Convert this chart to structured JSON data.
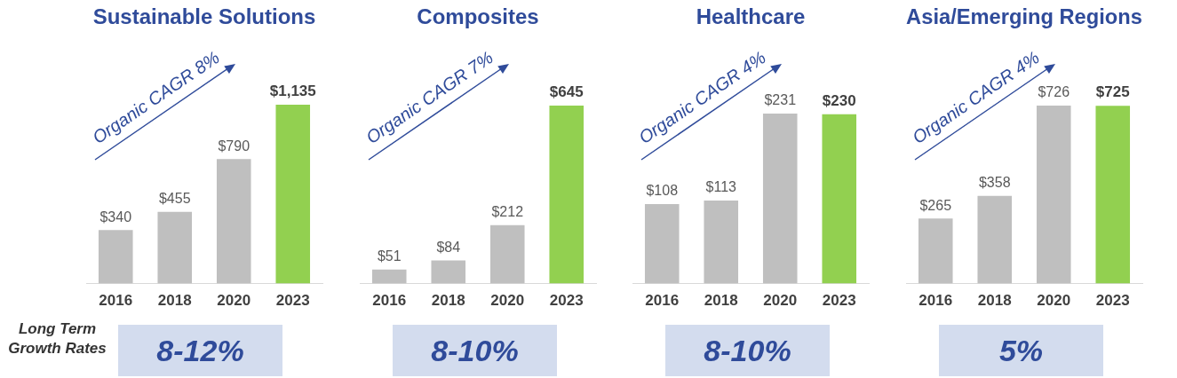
{
  "chart_data": [
    {
      "type": "bar",
      "title": "Sustainable Solutions",
      "categories": [
        "2016",
        "2018",
        "2020",
        "2023"
      ],
      "values": [
        340,
        455,
        790,
        1135
      ],
      "colors": [
        "#bfbfbf",
        "#bfbfbf",
        "#bfbfbf",
        "#92d050"
      ],
      "value_labels": [
        "$340",
        "$455",
        "$790",
        "$1,135"
      ],
      "tick_labels": "x",
      "grid": false,
      "legend": false,
      "annotations": [
        "Organic CAGR 8%",
        "8-12%",
        "Long Term Growth Rates"
      ]
    },
    {
      "type": "bar",
      "title": "Composites",
      "categories": [
        "2016",
        "2018",
        "2020",
        "2023"
      ],
      "values": [
        51,
        84,
        212,
        645
      ],
      "colors": [
        "#bfbfbf",
        "#bfbfbf",
        "#bfbfbf",
        "#92d050"
      ],
      "value_labels": [
        "$51",
        "$84",
        "$212",
        "$645"
      ],
      "tick_labels": "x",
      "grid": false,
      "legend": false,
      "annotations": [
        "Organic CAGR 7%",
        "8-10%"
      ]
    },
    {
      "type": "bar",
      "title": "Healthcare",
      "categories": [
        "2016",
        "2018",
        "2020",
        "2023"
      ],
      "values": [
        108,
        113,
        231,
        230
      ],
      "colors": [
        "#bfbfbf",
        "#bfbfbf",
        "#bfbfbf",
        "#92d050"
      ],
      "value_labels": [
        "$108",
        "$113",
        "$231",
        "$230"
      ],
      "tick_labels": "x",
      "grid": false,
      "legend": false,
      "annotations": [
        "Organic CAGR 4%",
        "8-10%"
      ]
    },
    {
      "type": "bar",
      "title": "Asia/Emerging Regions",
      "categories": [
        "2016",
        "2018",
        "2020",
        "2023"
      ],
      "values": [
        265,
        358,
        726,
        725
      ],
      "colors": [
        "#bfbfbf",
        "#bfbfbf",
        "#bfbfbf",
        "#92d050"
      ],
      "value_labels": [
        "$265",
        "$358",
        "$726",
        "$725"
      ],
      "tick_labels": "x",
      "grid": false,
      "legend": false,
      "annotations": [
        "Organic CAGR 4%",
        "5%"
      ]
    }
  ]
}
